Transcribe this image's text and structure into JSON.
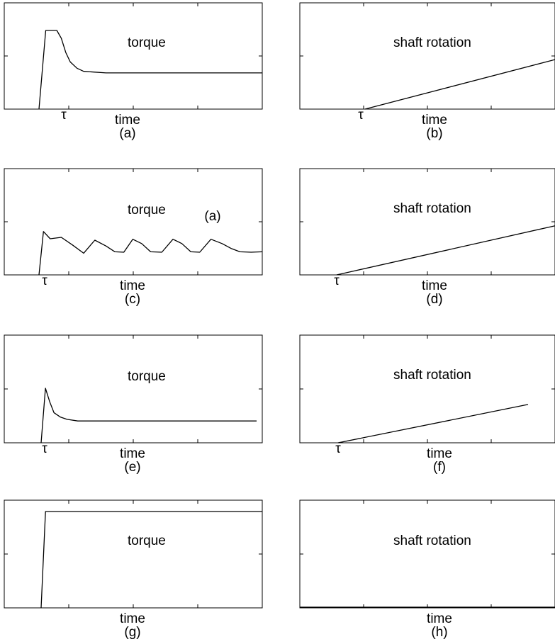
{
  "chart_data": [
    {
      "type": "line",
      "panel": "(a)",
      "xlabel": "time",
      "tick_label": "τ",
      "series": [
        {
          "name": "torque",
          "x": [
            0.0,
            0.03,
            0.05,
            0.08,
            0.1,
            0.12,
            0.14,
            0.17,
            0.2,
            0.25,
            0.3,
            1.0
          ],
          "y": [
            0.0,
            1.0,
            1.0,
            1.0,
            0.9,
            0.72,
            0.6,
            0.52,
            0.48,
            0.47,
            0.46,
            0.46
          ]
        }
      ]
    },
    {
      "type": "line",
      "panel": "(b)",
      "xlabel": "time",
      "tick_label": "τ",
      "series": [
        {
          "name": "shaft rotation",
          "x": [
            0.0,
            1.0
          ],
          "y": [
            0.0,
            0.63
          ]
        }
      ]
    },
    {
      "type": "line",
      "panel": "(c)",
      "xlabel": "time",
      "tick_label": "τ",
      "annotation": "(a)",
      "series": [
        {
          "name": "torque",
          "x": [
            0.0,
            0.02,
            0.05,
            0.1,
            0.15,
            0.2,
            0.25,
            0.3,
            0.34,
            0.38,
            0.42,
            0.46,
            0.5,
            0.55,
            0.6,
            0.64,
            0.68,
            0.72,
            0.77,
            0.82,
            0.86,
            0.9,
            0.95,
            1.0
          ],
          "y": [
            0.0,
            0.9,
            0.75,
            0.78,
            0.62,
            0.45,
            0.72,
            0.6,
            0.48,
            0.47,
            0.74,
            0.65,
            0.48,
            0.47,
            0.74,
            0.65,
            0.48,
            0.47,
            0.74,
            0.65,
            0.55,
            0.48,
            0.47,
            0.48
          ]
        }
      ]
    },
    {
      "type": "line",
      "panel": "(d)",
      "xlabel": "time",
      "tick_label": "τ",
      "series": [
        {
          "name": "shaft rotation",
          "x": [
            0.0,
            1.0
          ],
          "y": [
            0.0,
            0.63
          ]
        }
      ]
    },
    {
      "type": "line",
      "panel": "(e)",
      "xlabel": "time",
      "tick_label": "τ",
      "series": [
        {
          "name": "torque",
          "x": [
            0.0,
            0.02,
            0.04,
            0.06,
            0.09,
            0.12,
            0.17,
            0.3,
            1.0
          ],
          "y": [
            0.0,
            1.0,
            0.75,
            0.55,
            0.47,
            0.43,
            0.4,
            0.4,
            0.4
          ]
        }
      ]
    },
    {
      "type": "line",
      "panel": "(f)",
      "xlabel": "time",
      "tick_label": "τ",
      "series": [
        {
          "name": "shaft rotation",
          "x": [
            0.0,
            1.0
          ],
          "y": [
            0.0,
            0.53
          ]
        }
      ]
    },
    {
      "type": "line",
      "panel": "(g)",
      "xlabel": "time",
      "series": [
        {
          "name": "torque",
          "x": [
            0.0,
            0.02,
            1.0
          ],
          "y": [
            0.0,
            1.0,
            1.0
          ]
        }
      ]
    },
    {
      "type": "line",
      "panel": "(h)",
      "xlabel": "time",
      "series": [
        {
          "name": "shaft rotation",
          "x": [
            0.0,
            1.0
          ],
          "y": [
            0.0,
            0.0
          ]
        }
      ]
    }
  ]
}
